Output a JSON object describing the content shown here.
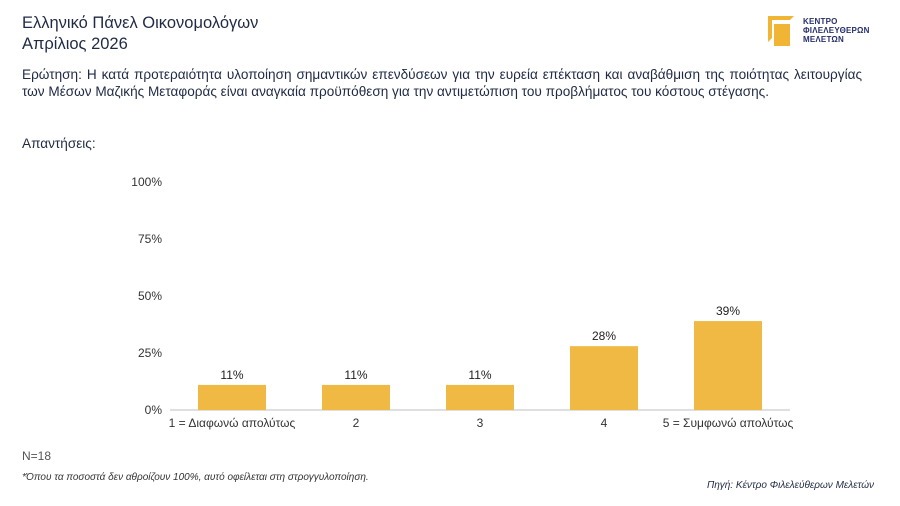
{
  "header": {
    "title_line1": "Ελληνικό Πάνελ Οικονομολόγων",
    "title_line2": "Απρίλιος 2026"
  },
  "logo": {
    "line1": "ΚΕΝΤΡΟ",
    "line2": "ΦΙΛΕΛΕΥΘΕΡΩΝ",
    "line3": "ΜΕΛΕΤΩΝ",
    "accent": "#f0b535",
    "text_color": "#27306b"
  },
  "question": "Ερώτηση: Η κατά προτεραιότητα υλοποίηση σημαντικών επενδύσεων για την ευρεία επέκταση και αναβάθμιση της ποιότητας λειτουργίας των Μέσων Μαζικής Μεταφοράς είναι αναγκαία προϋπόθεση για την αντιμετώπιση του προβλήματος του κόστους στέγασης.",
  "answers_label": "Απαντήσεις:",
  "sample_size": "N=18",
  "footnote": "*Όπου τα ποσοστά δεν αθροίζουν 100%, αυτό οφείλεται στη στρογγυλοποίηση.",
  "source": "Πηγή: Κέντρο Φιλελεύθερων Μελετών",
  "chart_data": {
    "type": "bar",
    "categories": [
      "1 = Διαφωνώ απολύτως",
      "2",
      "3",
      "4",
      "5 = Συμφωνώ απολύτως"
    ],
    "values": [
      11,
      11,
      11,
      28,
      39
    ],
    "value_labels": [
      "11%",
      "11%",
      "11%",
      "28%",
      "39%"
    ],
    "ylim": [
      0,
      100
    ],
    "yticks": [
      0,
      25,
      50,
      75,
      100
    ],
    "ytick_labels": [
      "0%",
      "25%",
      "50%",
      "75%",
      "100%"
    ],
    "bar_color": "#f0b943",
    "grid": false,
    "title": "",
    "xlabel": "",
    "ylabel": ""
  }
}
